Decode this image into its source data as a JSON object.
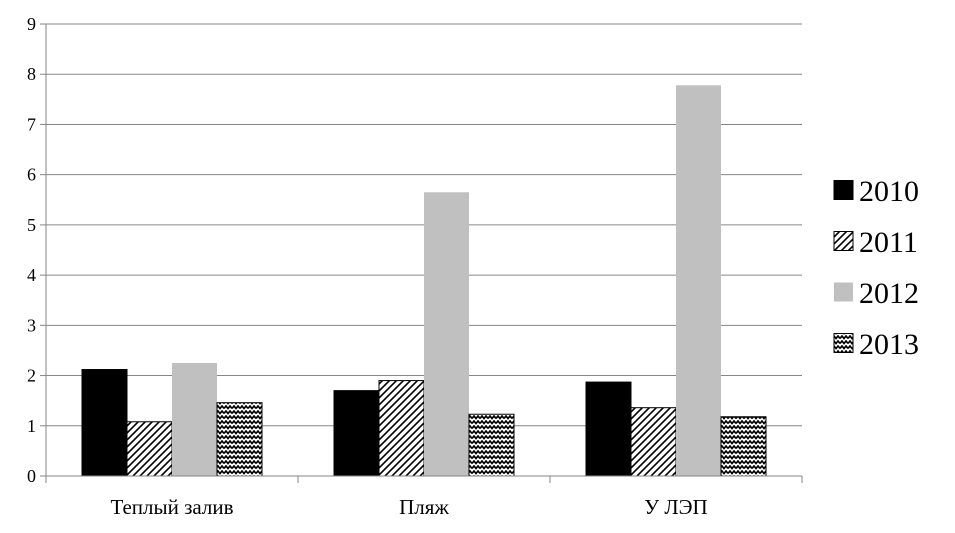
{
  "chart_data": {
    "type": "bar",
    "categories": [
      "Теплый залив",
      "Пляж",
      "У ЛЭП"
    ],
    "series": [
      {
        "name": "2010",
        "values": [
          2.12,
          1.7,
          1.87
        ],
        "style": "solid",
        "color": "#000000"
      },
      {
        "name": "2011",
        "values": [
          1.08,
          1.9,
          1.36
        ],
        "style": "diagonal-hatch",
        "color": "#000000"
      },
      {
        "name": "2012",
        "values": [
          2.25,
          5.65,
          7.78
        ],
        "style": "solid",
        "color": "#c0c0c0"
      },
      {
        "name": "2013",
        "values": [
          1.46,
          1.23,
          1.18
        ],
        "style": "zigzag-hatch",
        "color": "#000000"
      }
    ],
    "ylim": [
      0,
      9
    ],
    "yticks": [
      "0",
      "1",
      "2",
      "3",
      "4",
      "5",
      "6",
      "7",
      "8",
      "9"
    ],
    "title": "",
    "xlabel": "",
    "ylabel": "",
    "grid": true,
    "legend_position": "right"
  }
}
